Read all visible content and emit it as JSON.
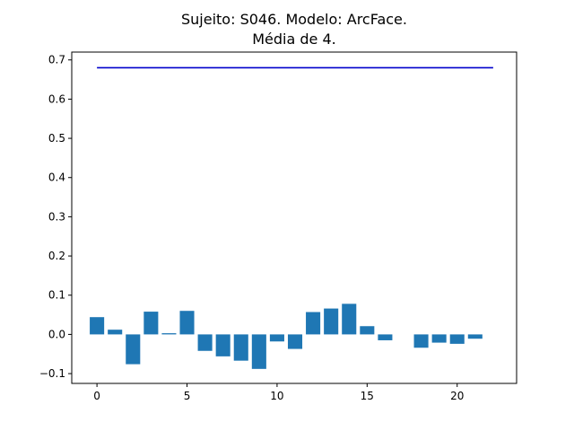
{
  "chart_data": {
    "type": "bar",
    "title": "Sujeito: S046. Modelo: ArcFace.",
    "subtitle": "Média de 4.",
    "xlabel": "",
    "ylabel": "",
    "x": [
      0,
      1,
      2,
      3,
      4,
      5,
      6,
      7,
      8,
      9,
      10,
      11,
      12,
      13,
      14,
      15,
      16,
      17,
      18,
      19,
      20,
      21
    ],
    "values": [
      0.044,
      0.012,
      -0.076,
      0.058,
      0.003,
      0.06,
      -0.042,
      -0.056,
      -0.067,
      -0.088,
      -0.018,
      -0.037,
      0.057,
      0.066,
      0.078,
      0.021,
      -0.015,
      0.0,
      -0.034,
      -0.021,
      -0.024,
      -0.011
    ],
    "reference_line": {
      "y": 0.68,
      "x_start": 0,
      "x_end": 22
    },
    "xlim": [
      -1.4,
      23.3
    ],
    "ylim": [
      -0.125,
      0.72
    ],
    "xticks": [
      0,
      5,
      10,
      15,
      20
    ],
    "yticks": [
      -0.1,
      0.0,
      0.1,
      0.2,
      0.3,
      0.4,
      0.5,
      0.6,
      0.7
    ],
    "ytick_labels": [
      "−0.1",
      "0.0",
      "0.1",
      "0.2",
      "0.3",
      "0.4",
      "0.5",
      "0.6",
      "0.7"
    ],
    "grid": false,
    "colors": {
      "bar": "#1f77b4",
      "line": "#0000cc",
      "axes": "#000000"
    }
  }
}
